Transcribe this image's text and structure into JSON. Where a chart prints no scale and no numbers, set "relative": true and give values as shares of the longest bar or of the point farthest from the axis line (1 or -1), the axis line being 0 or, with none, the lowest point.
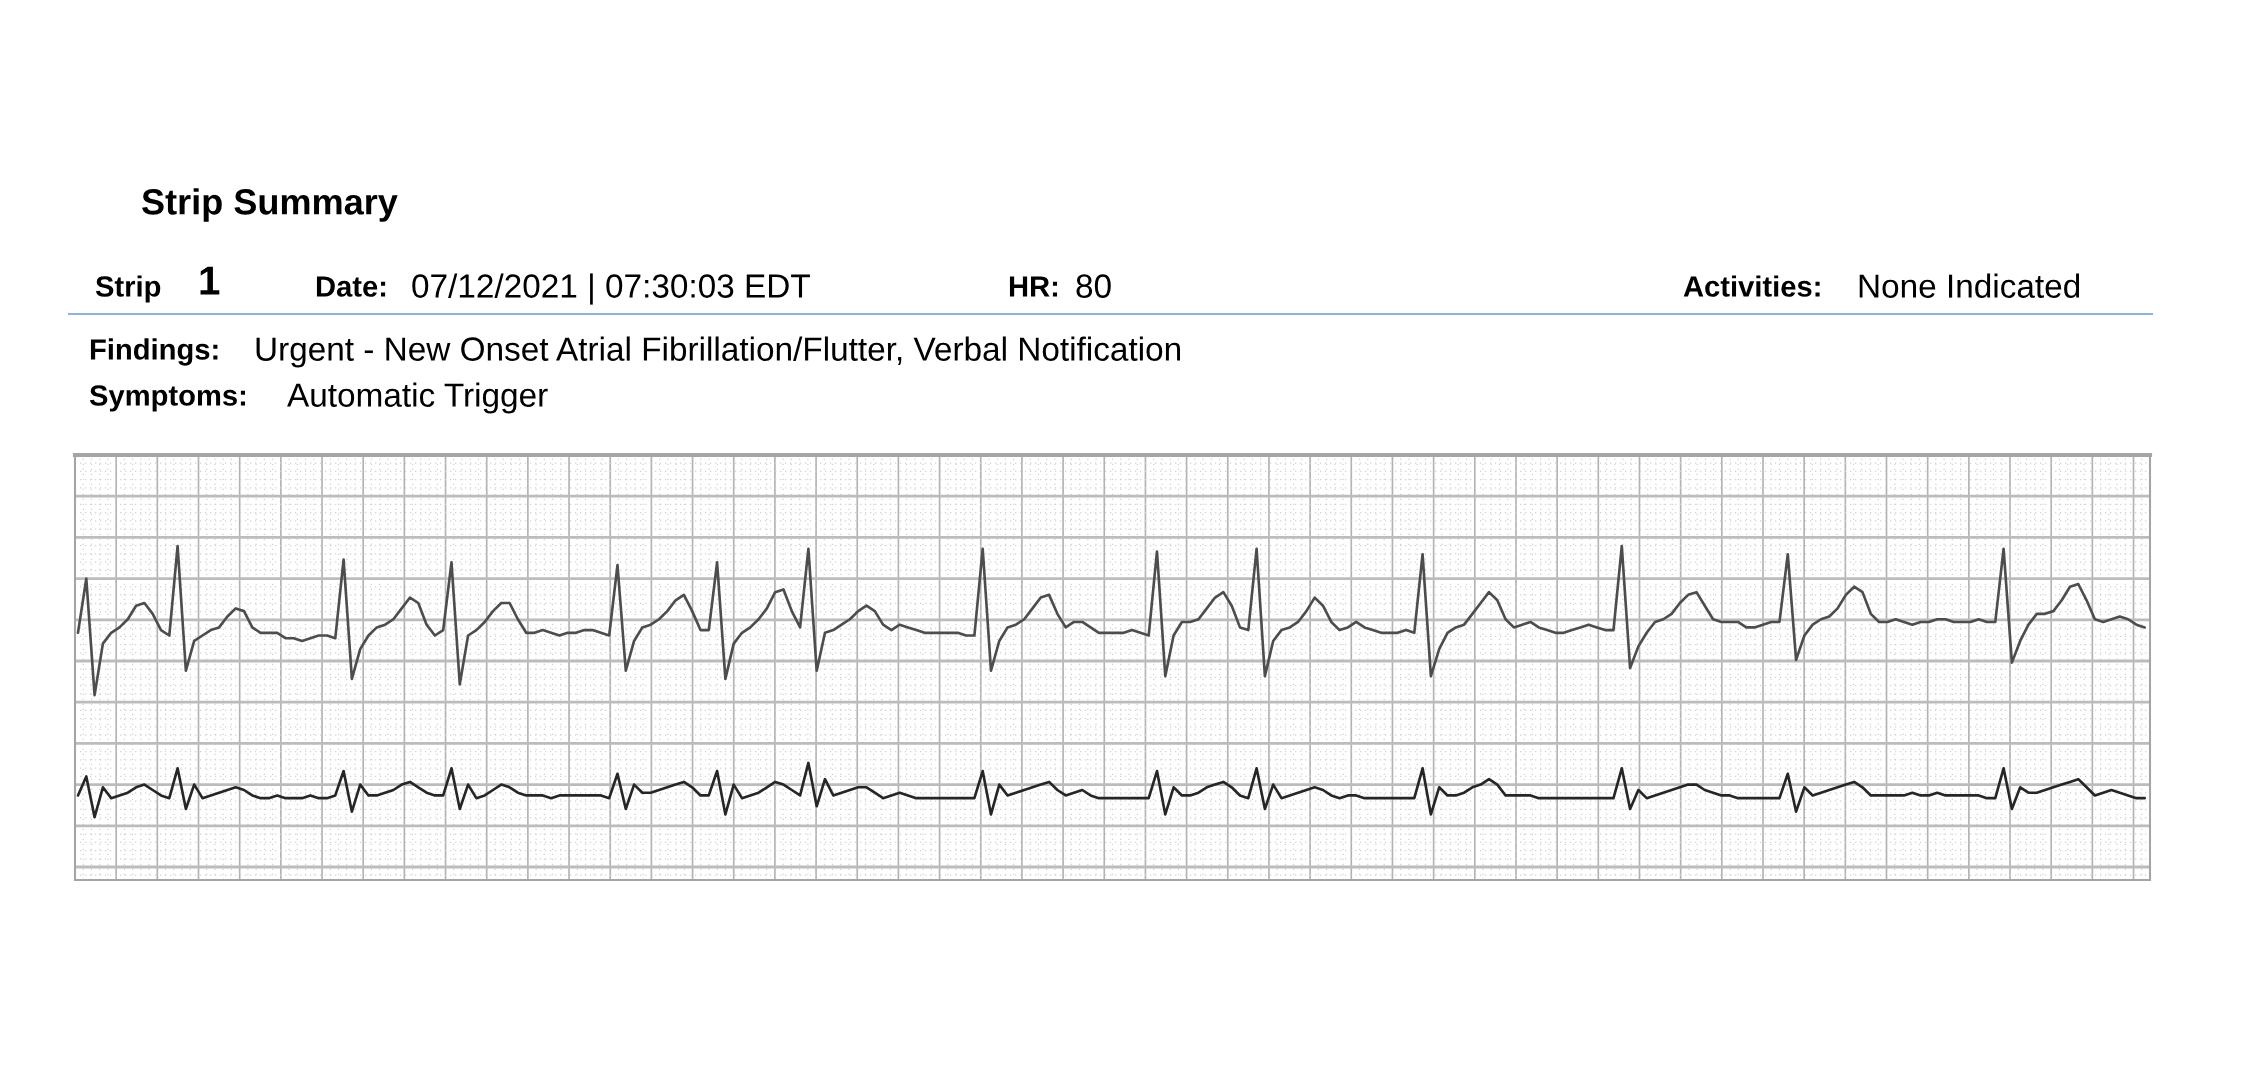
{
  "chart_data": {
    "type": "line",
    "title": "Strip Summary",
    "annotations": [
      "Strip",
      "1",
      "Date:",
      "07/12/2021 | 07:30:03 EDT",
      "HR:",
      "80",
      "Activities:",
      "None Indicated",
      "Findings:",
      "Urgent - New Onset Atrial Fibrillation/Flutter, Verbal Notification",
      "Symptoms:",
      "Automatic Trigger"
    ],
    "relative": true,
    "grid": true,
    "categories": [
      null,
      null,
      null,
      null,
      null,
      null,
      null,
      null,
      null,
      null,
      null,
      null,
      null,
      null,
      null,
      null,
      null,
      null,
      null,
      null,
      null,
      null,
      null,
      null,
      null,
      null,
      null,
      null,
      null,
      null,
      null,
      null,
      null,
      null,
      null,
      null,
      null,
      null,
      null,
      null,
      null,
      null,
      null,
      null,
      null,
      null,
      null,
      null,
      null,
      null,
      null,
      null,
      null,
      null,
      null,
      null,
      null,
      null,
      null,
      null,
      null,
      null,
      null,
      null,
      null,
      null,
      null,
      null,
      null,
      null,
      null,
      null,
      null,
      null,
      null,
      null,
      null,
      null,
      null,
      null,
      null,
      null,
      null,
      null,
      null,
      null,
      null,
      null,
      null,
      null,
      null,
      null,
      null,
      null,
      null,
      null,
      null,
      null,
      null,
      null,
      null,
      null,
      null,
      null,
      null,
      null,
      null,
      null,
      null,
      null,
      null,
      null,
      null,
      null,
      null,
      null,
      null,
      null,
      null,
      null,
      null,
      null,
      null,
      null,
      null,
      null,
      null,
      null,
      null,
      null,
      null,
      null,
      null,
      null,
      null,
      null,
      null,
      null,
      null,
      null,
      null,
      null,
      null,
      null,
      null,
      null,
      null,
      null,
      null,
      null,
      null,
      null,
      null,
      null,
      null,
      null,
      null,
      null,
      null,
      null,
      null,
      null,
      null,
      null,
      null,
      null,
      null,
      null,
      null,
      null,
      null,
      null,
      null,
      null,
      null,
      null,
      null,
      null,
      null,
      null,
      null,
      null,
      null,
      null,
      null,
      null,
      null,
      null,
      null,
      null,
      null,
      null,
      null,
      null,
      null,
      null,
      null,
      null,
      null,
      null,
      null,
      null,
      null,
      null,
      null,
      null,
      null,
      null,
      null,
      null,
      null,
      null,
      null,
      null,
      null,
      null,
      null,
      null,
      null,
      null,
      null,
      null,
      null,
      null,
      null,
      null,
      null,
      null,
      null,
      null,
      null,
      null,
      null,
      null,
      null,
      null,
      null,
      null,
      null,
      null,
      null,
      null,
      null,
      null,
      null,
      null,
      null,
      null,
      null,
      null
    ],
    "series": [
      {
        "color": "#4d4d4d",
        "values": [
          0.68,
          0.88,
          0.45,
          0.64,
          0.68,
          0.7,
          0.73,
          0.78,
          0.79,
          0.75,
          0.69,
          0.67,
          1.0,
          0.54,
          0.65,
          0.67,
          0.69,
          0.7,
          0.74,
          0.77,
          0.76,
          0.7,
          0.68,
          0.68,
          0.68,
          0.66,
          0.66,
          0.65,
          0.66,
          0.67,
          0.67,
          0.66,
          0.95,
          0.51,
          0.62,
          0.67,
          0.7,
          0.71,
          0.73,
          0.77,
          0.81,
          0.79,
          0.71,
          0.67,
          0.69,
          0.94,
          0.49,
          0.67,
          0.69,
          0.72,
          0.76,
          0.79,
          0.79,
          0.73,
          0.68,
          0.68,
          0.69,
          0.68,
          0.67,
          0.68,
          0.68,
          0.69,
          0.69,
          0.68,
          0.67,
          0.93,
          0.54,
          0.65,
          0.7,
          0.71,
          0.73,
          0.76,
          0.8,
          0.82,
          0.76,
          0.69,
          0.69,
          0.94,
          0.51,
          0.64,
          0.68,
          0.7,
          0.73,
          0.77,
          0.83,
          0.84,
          0.76,
          0.7,
          0.99,
          0.54,
          0.68,
          0.69,
          0.71,
          0.73,
          0.76,
          0.78,
          0.76,
          0.71,
          0.69,
          0.71,
          0.7,
          0.69,
          0.68,
          0.68,
          0.68,
          0.68,
          0.68,
          0.67,
          0.67,
          0.99,
          0.54,
          0.65,
          0.7,
          0.71,
          0.73,
          0.77,
          0.81,
          0.82,
          0.75,
          0.7,
          0.72,
          0.72,
          0.7,
          0.68,
          0.68,
          0.68,
          0.68,
          0.69,
          0.68,
          0.67,
          0.98,
          0.52,
          0.67,
          0.72,
          0.72,
          0.73,
          0.77,
          0.81,
          0.83,
          0.78,
          0.7,
          0.69,
          0.99,
          0.52,
          0.65,
          0.69,
          0.7,
          0.72,
          0.76,
          0.81,
          0.78,
          0.72,
          0.69,
          0.7,
          0.72,
          0.7,
          0.69,
          0.68,
          0.68,
          0.68,
          0.69,
          0.68,
          0.97,
          0.52,
          0.62,
          0.68,
          0.7,
          0.71,
          0.75,
          0.79,
          0.83,
          0.8,
          0.73,
          0.7,
          0.71,
          0.72,
          0.7,
          0.69,
          0.68,
          0.68,
          0.69,
          0.7,
          0.71,
          0.7,
          0.69,
          0.69,
          1.0,
          0.55,
          0.63,
          0.68,
          0.72,
          0.73,
          0.75,
          0.79,
          0.82,
          0.83,
          0.78,
          0.73,
          0.72,
          0.72,
          0.72,
          0.7,
          0.7,
          0.71,
          0.72,
          0.72,
          0.97,
          0.58,
          0.67,
          0.71,
          0.73,
          0.74,
          0.77,
          0.82,
          0.85,
          0.83,
          0.75,
          0.72,
          0.72,
          0.73,
          0.72,
          0.71,
          0.72,
          0.72,
          0.73,
          0.73,
          0.72,
          0.72,
          0.72,
          0.73,
          0.72,
          0.72,
          0.99,
          0.57,
          0.65,
          0.71,
          0.75,
          0.75,
          0.76,
          0.8,
          0.85,
          0.86,
          0.8,
          0.73,
          0.72,
          0.73,
          0.74,
          0.73,
          0.71,
          0.7
        ]
      },
      {
        "color": "#262626",
        "values": [
          0.08,
          0.15,
          0.0,
          0.11,
          0.07,
          0.08,
          0.09,
          0.11,
          0.12,
          0.1,
          0.08,
          0.07,
          0.18,
          0.03,
          0.12,
          0.07,
          0.08,
          0.09,
          0.1,
          0.11,
          0.1,
          0.08,
          0.07,
          0.07,
          0.08,
          0.07,
          0.07,
          0.07,
          0.08,
          0.07,
          0.07,
          0.08,
          0.17,
          0.02,
          0.12,
          0.08,
          0.08,
          0.09,
          0.1,
          0.12,
          0.13,
          0.11,
          0.09,
          0.08,
          0.08,
          0.18,
          0.03,
          0.12,
          0.07,
          0.08,
          0.1,
          0.12,
          0.11,
          0.09,
          0.08,
          0.08,
          0.08,
          0.07,
          0.08,
          0.08,
          0.08,
          0.08,
          0.08,
          0.08,
          0.07,
          0.16,
          0.03,
          0.12,
          0.09,
          0.09,
          0.1,
          0.11,
          0.12,
          0.13,
          0.11,
          0.08,
          0.08,
          0.17,
          0.01,
          0.12,
          0.07,
          0.08,
          0.09,
          0.11,
          0.13,
          0.12,
          0.1,
          0.08,
          0.2,
          0.04,
          0.14,
          0.08,
          0.09,
          0.1,
          0.11,
          0.11,
          0.09,
          0.07,
          0.08,
          0.09,
          0.08,
          0.07,
          0.07,
          0.07,
          0.07,
          0.07,
          0.07,
          0.07,
          0.07,
          0.17,
          0.01,
          0.12,
          0.08,
          0.09,
          0.1,
          0.11,
          0.12,
          0.13,
          0.1,
          0.08,
          0.09,
          0.1,
          0.08,
          0.07,
          0.07,
          0.07,
          0.07,
          0.07,
          0.07,
          0.07,
          0.17,
          0.01,
          0.11,
          0.08,
          0.08,
          0.09,
          0.11,
          0.12,
          0.13,
          0.11,
          0.08,
          0.07,
          0.18,
          0.03,
          0.12,
          0.07,
          0.08,
          0.09,
          0.1,
          0.11,
          0.1,
          0.08,
          0.07,
          0.08,
          0.08,
          0.07,
          0.07,
          0.07,
          0.07,
          0.07,
          0.07,
          0.07,
          0.18,
          0.01,
          0.11,
          0.08,
          0.08,
          0.09,
          0.11,
          0.12,
          0.14,
          0.12,
          0.08,
          0.08,
          0.08,
          0.08,
          0.07,
          0.07,
          0.07,
          0.07,
          0.07,
          0.07,
          0.07,
          0.07,
          0.07,
          0.07,
          0.18,
          0.03,
          0.1,
          0.07,
          0.08,
          0.09,
          0.1,
          0.11,
          0.12,
          0.12,
          0.1,
          0.09,
          0.08,
          0.08,
          0.07,
          0.07,
          0.07,
          0.07,
          0.07,
          0.07,
          0.16,
          0.02,
          0.11,
          0.08,
          0.09,
          0.1,
          0.11,
          0.12,
          0.13,
          0.11,
          0.08,
          0.08,
          0.08,
          0.08,
          0.08,
          0.09,
          0.08,
          0.08,
          0.09,
          0.08,
          0.08,
          0.08,
          0.08,
          0.08,
          0.07,
          0.07,
          0.18,
          0.03,
          0.11,
          0.09,
          0.09,
          0.1,
          0.11,
          0.12,
          0.13,
          0.14,
          0.11,
          0.08,
          0.09,
          0.1,
          0.09,
          0.08,
          0.07,
          0.07
        ]
      }
    ]
  }
}
